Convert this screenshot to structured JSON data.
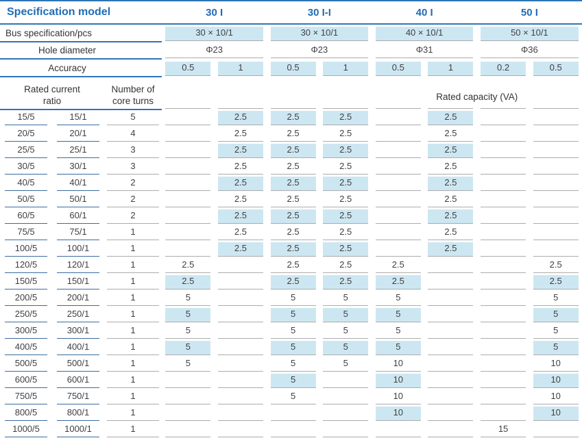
{
  "colors": {
    "accent_blue": "#1f6cb5",
    "line_blue": "#2e74b5",
    "highlight_blue": "#cde7f2",
    "line_gray": "#ababab",
    "text_dark": "#3f3f3f"
  },
  "header": {
    "title": "Specification model",
    "models": [
      "30 I",
      "30 I-I",
      "40 I",
      "50 I"
    ]
  },
  "specs": {
    "bus_label": "Bus specification/pcs",
    "bus_values": [
      "30 × 10/1",
      "30 × 10/1",
      "40 × 10/1",
      "50 × 10/1"
    ],
    "hole_label": "Hole diameter",
    "hole_values": [
      "Φ23",
      "Φ23",
      "Φ31",
      "Φ36"
    ],
    "accuracy_label": "Accuracy",
    "accuracy_values": [
      "0.5",
      "1",
      "0.5",
      "1",
      "0.5",
      "1",
      "0.2",
      "0.5"
    ]
  },
  "col_headers": {
    "ratio_line1": "Rated current",
    "ratio_line2": "ratio",
    "turns_line1": "Number of",
    "turns_line2": "core turns",
    "capacity": "Rated capacity (VA)"
  },
  "table": {
    "rows": [
      {
        "ratio5": "15/5",
        "ratio1": "15/1",
        "turns": "5",
        "highlight": true,
        "values": [
          "",
          "2.5",
          "2.5",
          "2.5",
          "",
          "2.5",
          "",
          ""
        ]
      },
      {
        "ratio5": "20/5",
        "ratio1": "20/1",
        "turns": "4",
        "highlight": false,
        "values": [
          "",
          "2.5",
          "2.5",
          "2.5",
          "",
          "2.5",
          "",
          ""
        ]
      },
      {
        "ratio5": "25/5",
        "ratio1": "25/1",
        "turns": "3",
        "highlight": true,
        "values": [
          "",
          "2.5",
          "2.5",
          "2.5",
          "",
          "2.5",
          "",
          ""
        ]
      },
      {
        "ratio5": "30/5",
        "ratio1": "30/1",
        "turns": "3",
        "highlight": false,
        "values": [
          "",
          "2.5",
          "2.5",
          "2.5",
          "",
          "2.5",
          "",
          ""
        ]
      },
      {
        "ratio5": "40/5",
        "ratio1": "40/1",
        "turns": "2",
        "highlight": true,
        "values": [
          "",
          "2.5",
          "2.5",
          "2.5",
          "",
          "2.5",
          "",
          ""
        ]
      },
      {
        "ratio5": "50/5",
        "ratio1": "50/1",
        "turns": "2",
        "highlight": false,
        "values": [
          "",
          "2.5",
          "2.5",
          "2.5",
          "",
          "2.5",
          "",
          ""
        ]
      },
      {
        "ratio5": "60/5",
        "ratio1": "60/1",
        "turns": "2",
        "highlight": true,
        "values": [
          "",
          "2.5",
          "2.5",
          "2.5",
          "",
          "2.5",
          "",
          ""
        ]
      },
      {
        "ratio5": "75/5",
        "ratio1": "75/1",
        "turns": "1",
        "highlight": false,
        "values": [
          "",
          "2.5",
          "2.5",
          "2.5",
          "",
          "2.5",
          "",
          ""
        ]
      },
      {
        "ratio5": "100/5",
        "ratio1": "100/1",
        "turns": "1",
        "highlight": true,
        "values": [
          "",
          "2.5",
          "2.5",
          "2.5",
          "",
          "2.5",
          "",
          ""
        ]
      },
      {
        "ratio5": "120/5",
        "ratio1": "120/1",
        "turns": "1",
        "highlight": false,
        "values": [
          "2.5",
          "",
          "2.5",
          "2.5",
          "2.5",
          "",
          "",
          "2.5"
        ]
      },
      {
        "ratio5": "150/5",
        "ratio1": "150/1",
        "turns": "1",
        "highlight": true,
        "values": [
          "2.5",
          "",
          "2.5",
          "2.5",
          "2.5",
          "",
          "",
          "2.5"
        ]
      },
      {
        "ratio5": "200/5",
        "ratio1": "200/1",
        "turns": "1",
        "highlight": false,
        "values": [
          "5",
          "",
          "5",
          "5",
          "5",
          "",
          "",
          "5"
        ]
      },
      {
        "ratio5": "250/5",
        "ratio1": "250/1",
        "turns": "1",
        "highlight": true,
        "values": [
          "5",
          "",
          "5",
          "5",
          "5",
          "",
          "",
          "5"
        ]
      },
      {
        "ratio5": "300/5",
        "ratio1": "300/1",
        "turns": "1",
        "highlight": false,
        "values": [
          "5",
          "",
          "5",
          "5",
          "5",
          "",
          "",
          "5"
        ]
      },
      {
        "ratio5": "400/5",
        "ratio1": "400/1",
        "turns": "1",
        "highlight": true,
        "values": [
          "5",
          "",
          "5",
          "5",
          "5",
          "",
          "",
          "5"
        ]
      },
      {
        "ratio5": "500/5",
        "ratio1": "500/1",
        "turns": "1",
        "highlight": false,
        "values": [
          "5",
          "",
          "5",
          "5",
          "10",
          "",
          "",
          "10"
        ]
      },
      {
        "ratio5": "600/5",
        "ratio1": "600/1",
        "turns": "1",
        "highlight": true,
        "values": [
          "",
          "",
          "5",
          "",
          "10",
          "",
          "",
          "10"
        ]
      },
      {
        "ratio5": "750/5",
        "ratio1": "750/1",
        "turns": "1",
        "highlight": false,
        "values": [
          "",
          "",
          "5",
          "",
          "10",
          "",
          "",
          "10"
        ]
      },
      {
        "ratio5": "800/5",
        "ratio1": "800/1",
        "turns": "1",
        "highlight": true,
        "values": [
          "",
          "",
          "",
          "",
          "10",
          "",
          "",
          "10"
        ]
      },
      {
        "ratio5": "1000/5",
        "ratio1": "1000/1",
        "turns": "1",
        "highlight": false,
        "values": [
          "",
          "",
          "",
          "",
          "",
          "",
          "15",
          ""
        ]
      }
    ]
  }
}
